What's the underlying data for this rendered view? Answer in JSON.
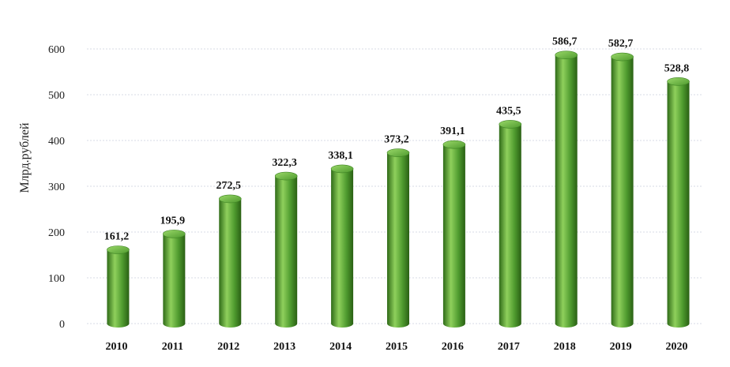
{
  "chart_data": {
    "type": "bar",
    "title": "",
    "xlabel": "",
    "ylabel": "Млрд.рублей",
    "categories": [
      "2010",
      "2011",
      "2012",
      "2013",
      "2014",
      "2015",
      "2016",
      "2017",
      "2018",
      "2019",
      "2020"
    ],
    "values": [
      161.2,
      195.9,
      272.5,
      322.3,
      338.1,
      373.2,
      391.1,
      435.5,
      586.7,
      582.7,
      528.8
    ],
    "value_labels": [
      "161,2",
      "195,9",
      "272,5",
      "322,3",
      "338,1",
      "373,2",
      "391,1",
      "435,5",
      "586,7",
      "582,7",
      "528,8"
    ],
    "yticks": [
      0,
      100,
      200,
      300,
      400,
      500,
      600
    ],
    "ylim": [
      0,
      600
    ],
    "grid": true,
    "bar_style": "3d-cylinder",
    "colors": {
      "bar": "#4e9a2e",
      "bar_light": "#8fd05c",
      "bar_dark": "#2f6b18",
      "grid": "#d7dbe6"
    }
  }
}
